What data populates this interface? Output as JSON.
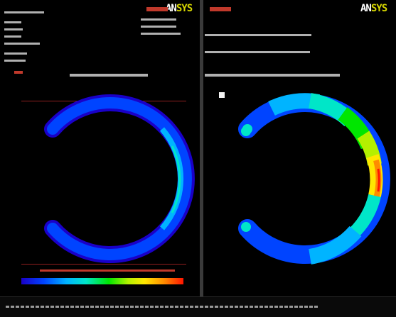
{
  "logo": {
    "an": "AN",
    "sys": "SYS"
  },
  "colors": {
    "background": "#000000",
    "divider": "#3a3a3a",
    "accent_red": "#c0392b",
    "logo_yellow": "#d6d600",
    "contour_min": "#1a00c8",
    "contour_max": "#ff1400"
  },
  "viewports": [
    {
      "id": "left",
      "logo_visible": true,
      "title": "",
      "info_lines": [
        "",
        "",
        "",
        "",
        "",
        "",
        ""
      ],
      "contour_colors": [
        "#1a00c8",
        "#0044ff",
        "#00b4ff",
        "#00e6c8"
      ],
      "legend_ticks": [
        "",
        "",
        "",
        "",
        "",
        "",
        "",
        "",
        ""
      ]
    },
    {
      "id": "right",
      "logo_visible": true,
      "title": "",
      "info_lines": [
        "",
        ""
      ],
      "contour_colors": [
        "#0044ff",
        "#00b4ff",
        "#00e6c8",
        "#00e600",
        "#ffe600",
        "#ff8c00",
        "#ff1400"
      ],
      "legend_ticks": [
        "",
        "",
        "",
        "",
        "",
        "",
        "",
        "",
        ""
      ]
    }
  ],
  "status_bar": {
    "text": ""
  }
}
